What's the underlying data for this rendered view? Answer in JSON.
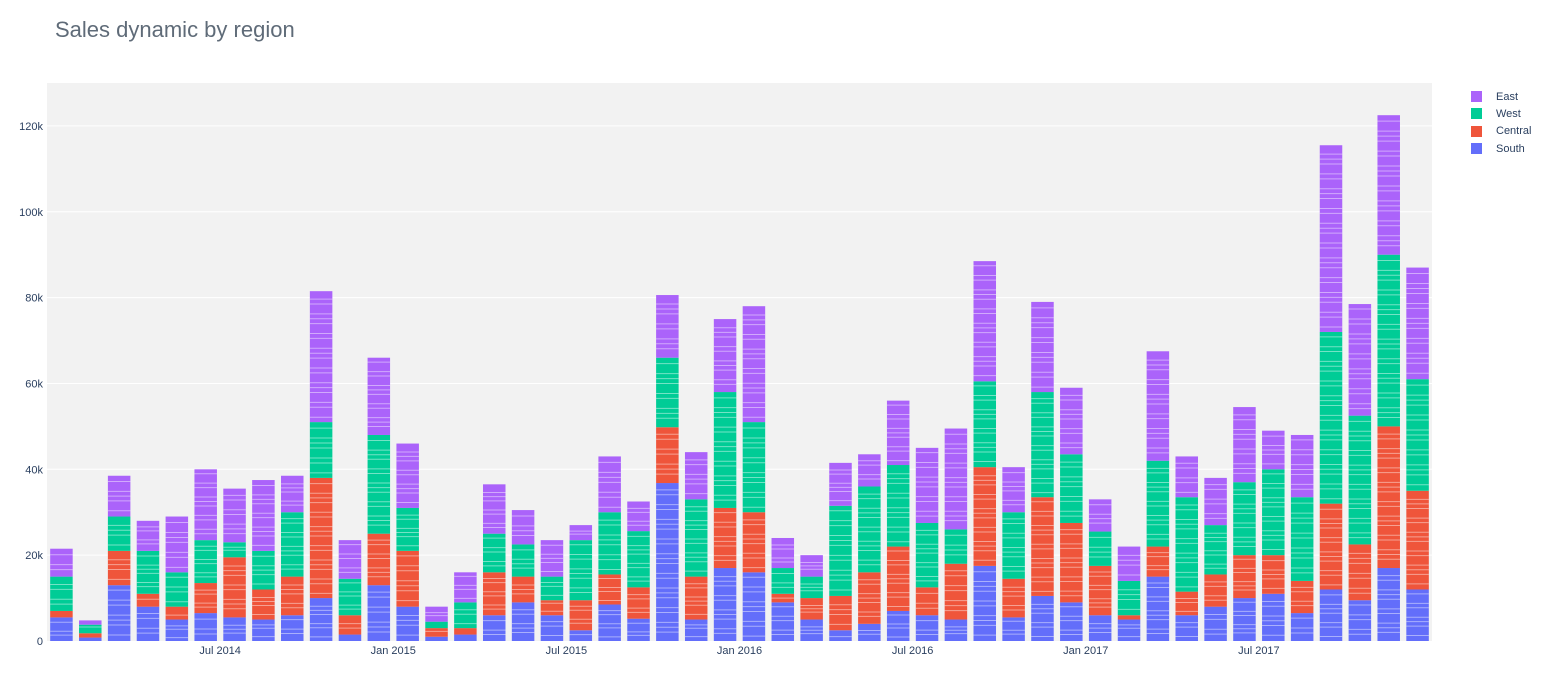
{
  "chart_data": {
    "type": "bar",
    "stacked": true,
    "title": "Sales dynamic by region",
    "xlabel": "",
    "ylabel": "",
    "ylim": [
      0,
      130000
    ],
    "y_ticks": [
      0,
      20000,
      40000,
      60000,
      80000,
      100000,
      120000
    ],
    "y_tick_labels": [
      "0",
      "20k",
      "40k",
      "60k",
      "80k",
      "100k",
      "120k"
    ],
    "x_ticks": [
      {
        "label": "Jul 2014",
        "month": "2014-07"
      },
      {
        "label": "Jan 2015",
        "month": "2015-01"
      },
      {
        "label": "Jul 2015",
        "month": "2015-07"
      },
      {
        "label": "Jan 2016",
        "month": "2016-01"
      },
      {
        "label": "Jul 2016",
        "month": "2016-07"
      },
      {
        "label": "Jan 2017",
        "month": "2017-01"
      },
      {
        "label": "Jul 2017",
        "month": "2017-07"
      }
    ],
    "grid": true,
    "legend_position": "right",
    "months": [
      "2014-01",
      "2014-02",
      "2014-03",
      "2014-04",
      "2014-05",
      "2014-06",
      "2014-07",
      "2014-08",
      "2014-09",
      "2014-10",
      "2014-11",
      "2014-12",
      "2015-01",
      "2015-02",
      "2015-03",
      "2015-04",
      "2015-05",
      "2015-06",
      "2015-07",
      "2015-08",
      "2015-09",
      "2015-10",
      "2015-11",
      "2015-12",
      "2016-01",
      "2016-02",
      "2016-03",
      "2016-04",
      "2016-05",
      "2016-06",
      "2016-07",
      "2016-08",
      "2016-09",
      "2016-10",
      "2016-11",
      "2016-12",
      "2017-01",
      "2017-02",
      "2017-03",
      "2017-04",
      "2017-05",
      "2017-06",
      "2017-07",
      "2017-08",
      "2017-09",
      "2017-10",
      "2017-11",
      "2017-12"
    ],
    "series": [
      {
        "name": "South",
        "color": "#636efa",
        "values": [
          5500,
          800,
          13000,
          8000,
          5000,
          6500,
          5500,
          5000,
          6000,
          10000,
          1500,
          13000,
          8000,
          1000,
          1500,
          6000,
          9000,
          6000,
          2500,
          8500,
          5200,
          36800,
          5000,
          17000,
          16000,
          9000,
          5000,
          2500,
          4000,
          7000,
          6000,
          5000,
          17500,
          5500,
          10500,
          9000,
          6000,
          5000,
          15000,
          6000,
          8000,
          10000,
          11000,
          6500,
          12000,
          9500,
          17000,
          12000
        ]
      },
      {
        "name": "Central",
        "color": "#ef553b",
        "values": [
          1500,
          1000,
          8000,
          3000,
          3000,
          7000,
          14000,
          7000,
          9000,
          28000,
          4500,
          12000,
          13000,
          2000,
          1500,
          10000,
          6000,
          3500,
          7000,
          7000,
          7300,
          13000,
          10000,
          14000,
          14000,
          2000,
          5000,
          8000,
          12000,
          15000,
          6500,
          13000,
          23000,
          9000,
          23000,
          18500,
          11500,
          1000,
          7000,
          5500,
          7500,
          10000,
          9000,
          7500,
          20000,
          13000,
          33000,
          23000
        ]
      },
      {
        "name": "West",
        "color": "#00cc96",
        "values": [
          8000,
          2000,
          8000,
          10000,
          8000,
          10000,
          3500,
          9000,
          15000,
          13000,
          8500,
          23000,
          10000,
          1500,
          6000,
          9000,
          7500,
          5500,
          14000,
          14500,
          13100,
          16200,
          18000,
          27000,
          21000,
          6000,
          5000,
          21000,
          20000,
          19000,
          15000,
          8000,
          20000,
          15500,
          24500,
          16000,
          8000,
          8000,
          20000,
          22000,
          11500,
          17000,
          20000,
          19500,
          40000,
          30000,
          40000,
          26000
        ]
      },
      {
        "name": "East",
        "color": "#ab63fa",
        "values": [
          6500,
          1000,
          9500,
          7000,
          13000,
          16500,
          12500,
          16500,
          8500,
          30500,
          9000,
          18000,
          15000,
          3500,
          7000,
          11500,
          8000,
          8500,
          3500,
          13000,
          6900,
          14600,
          11000,
          17000,
          27000,
          7000,
          5000,
          10000,
          7500,
          15000,
          17500,
          23500,
          28000,
          10500,
          21000,
          15500,
          7500,
          8000,
          25500,
          9500,
          11000,
          17500,
          9000,
          14500,
          43500,
          26000,
          32500,
          26000
        ]
      }
    ]
  },
  "legend": {
    "items": [
      {
        "label": "East",
        "color": "#ab63fa"
      },
      {
        "label": "West",
        "color": "#00cc96"
      },
      {
        "label": "Central",
        "color": "#ef553b"
      },
      {
        "label": "South",
        "color": "#636efa"
      }
    ]
  }
}
